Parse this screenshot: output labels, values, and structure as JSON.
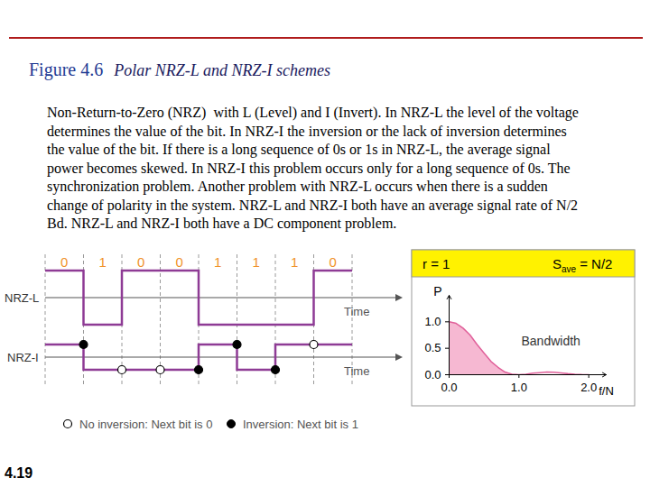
{
  "figure": {
    "number": "Figure 4.6",
    "title": "Polar NRZ-L and NRZ-I schemes"
  },
  "paragraph": [
    "Non-Return-to-Zero (NRZ)  with L (Level) and I (Invert). In NRZ-L the level of the voltage",
    "determines the value of the bit. In NRZ-I the inversion or the lack of inversion determines",
    "the value of the bit. If there is a long sequence of 0s or 1s in NRZ-L, the average signal",
    "power becomes skewed. In NRZ-I this problem occurs only for a long sequence of 0s. The",
    "synchronization problem. Another problem with NRZ-L occurs when there is a sudden",
    "change of polarity in the system. NRZ-L and NRZ-I both have an average signal rate of N/2",
    "Bd. NRZ-L and NRZ-I both have a DC component problem."
  ],
  "signals": {
    "bits": [
      0,
      1,
      0,
      0,
      1,
      1,
      1,
      0
    ],
    "nrz_l_label": "NRZ-L",
    "nrz_i_label": "NRZ-I",
    "time_label": "Time",
    "legend": {
      "no_inversion": "No inversion: Next bit is 0",
      "inversion": "Inversion: Next bit is 1"
    }
  },
  "spectrum_header": {
    "r": "r = 1",
    "s_symbol": "S",
    "s_subscript": "ave",
    "s_value": "= N/2"
  },
  "chart_data": {
    "type": "area",
    "x_label": "f/N",
    "y_label": "P",
    "annotation": "Bandwidth",
    "bandwidth": [
      0,
      1
    ],
    "x": [
      0,
      0.1,
      0.2,
      0.3,
      0.4,
      0.5,
      0.6,
      0.7,
      0.8,
      0.9,
      1.0,
      1.1,
      1.2,
      1.3,
      1.4,
      1.5,
      1.6,
      1.7,
      1.8,
      1.9,
      2.0
    ],
    "values": [
      1,
      0.97,
      0.88,
      0.75,
      0.57,
      0.41,
      0.25,
      0.14,
      0.05,
      0.01,
      0,
      0.01,
      0.03,
      0.04,
      0.05,
      0.045,
      0.035,
      0.02,
      0.01,
      0.003,
      0
    ],
    "color": "#f6b8d2",
    "xlim": [
      0,
      2.25
    ],
    "ylim": [
      0,
      1.5
    ],
    "xticks": [
      0,
      1,
      2
    ],
    "yticks": [
      0,
      0.5,
      1
    ]
  },
  "page_number": "4.19"
}
